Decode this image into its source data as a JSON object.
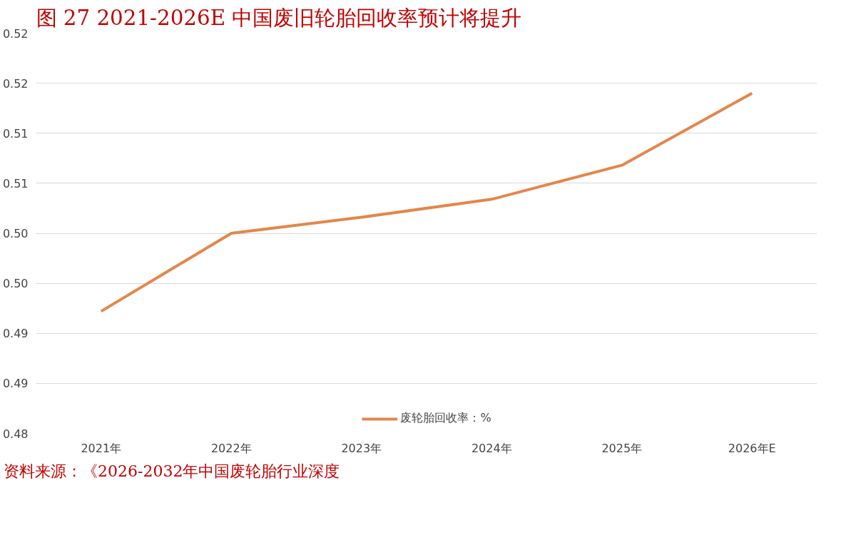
{
  "chart_data": {
    "type": "line",
    "title": "图 27  2021-2026E 中国废旧轮胎回收率预计将提升",
    "categories": [
      "2021年",
      "2022年",
      "2023年",
      "2024年",
      "2025年",
      "2026年E"
    ],
    "series": [
      {
        "name": "废轮胎回收率：%",
        "color": "#e2874a",
        "values": [
          0.4922,
          0.5,
          0.5016,
          0.5034,
          0.5068,
          0.514
        ]
      }
    ],
    "ylim": [
      0.48,
      0.52
    ],
    "yticks": [
      {
        "value": 0.48,
        "label": "0.48"
      },
      {
        "value": 0.485,
        "label": "0.49"
      },
      {
        "value": 0.49,
        "label": "0.49"
      },
      {
        "value": 0.495,
        "label": "0.50"
      },
      {
        "value": 0.5,
        "label": "0.50"
      },
      {
        "value": 0.505,
        "label": "0.51"
      },
      {
        "value": 0.51,
        "label": "0.51"
      },
      {
        "value": 0.515,
        "label": "0.52"
      },
      {
        "value": 0.52,
        "label": "0.52"
      }
    ],
    "grid": "y",
    "legend": "bottom",
    "marker": "none",
    "line_style": "solid",
    "annotations": [
      "资料来源：《2026-2032年中国废轮胎行业深度"
    ]
  }
}
